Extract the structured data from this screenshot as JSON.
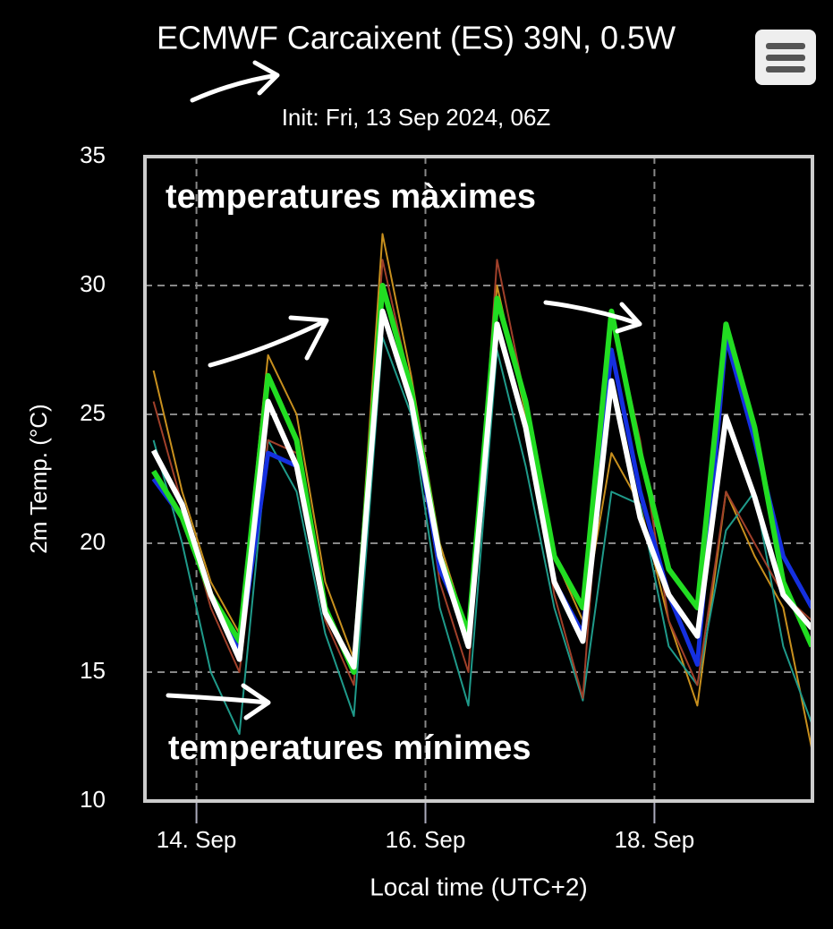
{
  "chart_data": {
    "type": "line",
    "title": "ECMWF Carcaixent (ES) 39N, 0.5W",
    "subtitle": "Init: Fri, 13 Sep 2024, 06Z",
    "y_label": "2m Temp. (°C)",
    "x_label": "Local time (UTC+2)",
    "annotations": [
      "temperatures màximes",
      "temperatures mínimes"
    ],
    "x": [
      13.625,
      13.875,
      14.125,
      14.375,
      14.625,
      14.875,
      15.125,
      15.375,
      15.625,
      15.875,
      16.125,
      16.375,
      16.625,
      16.875,
      17.125,
      17.375,
      17.625,
      17.875,
      18.125,
      18.375,
      18.625,
      18.875,
      19.125,
      19.375
    ],
    "xlim": [
      13.55,
      19.38
    ],
    "xticks": [
      {
        "value": 14,
        "label": "14. Sep"
      },
      {
        "value": 16,
        "label": "16. Sep"
      },
      {
        "value": 18,
        "label": "18. Sep"
      }
    ],
    "ylim": [
      10,
      35
    ],
    "yticks": [
      10,
      15,
      20,
      25,
      30,
      35
    ],
    "grid": true,
    "series": [
      {
        "color": "#c8901e",
        "width": 2,
        "values": [
          26.7,
          22.0,
          18.5,
          16.5,
          27.3,
          25.0,
          18.5,
          15.5,
          32.0,
          26.5,
          20.0,
          16.5,
          30.0,
          25.0,
          19.5,
          17.0,
          23.5,
          21.5,
          17.0,
          13.7,
          22.0,
          19.5,
          17.5,
          12.0
        ]
      },
      {
        "color": "#1f9a8a",
        "width": 2,
        "values": [
          24.0,
          20.0,
          15.0,
          12.6,
          24.0,
          22.0,
          16.5,
          13.3,
          28.0,
          25.0,
          17.5,
          13.7,
          27.5,
          23.0,
          17.5,
          13.9,
          22.0,
          21.5,
          16.0,
          14.5,
          20.5,
          22.0,
          16.0,
          13.0
        ]
      },
      {
        "color": "#a0402a",
        "width": 2,
        "values": [
          25.5,
          21.5,
          17.5,
          15.0,
          24.0,
          23.5,
          17.0,
          14.5,
          31.0,
          26.0,
          18.5,
          15.0,
          31.0,
          25.5,
          18.0,
          14.0,
          29.0,
          24.0,
          17.0,
          14.5,
          22.0,
          20.0,
          18.0,
          17.0
        ]
      },
      {
        "color": "#1530e0",
        "width": 5,
        "values": [
          22.5,
          21.0,
          18.0,
          15.8,
          23.5,
          23.0,
          17.5,
          15.0,
          29.0,
          25.5,
          19.0,
          16.5,
          28.5,
          24.5,
          18.5,
          16.5,
          27.5,
          22.0,
          18.0,
          15.3,
          28.0,
          24.0,
          19.5,
          17.5
        ]
      },
      {
        "color": "#22dd22",
        "width": 6,
        "values": [
          22.8,
          21.0,
          18.0,
          16.2,
          26.5,
          24.0,
          17.5,
          15.0,
          30.0,
          26.0,
          19.5,
          16.5,
          29.5,
          25.5,
          19.5,
          17.5,
          29.0,
          23.5,
          19.0,
          17.5,
          28.5,
          24.5,
          18.5,
          16.0
        ]
      },
      {
        "color": "#ffffff",
        "width": 6,
        "values": [
          23.6,
          21.5,
          18.0,
          15.5,
          25.5,
          23.0,
          17.3,
          15.2,
          29.0,
          25.5,
          19.5,
          16.0,
          28.5,
          24.5,
          18.5,
          16.2,
          26.3,
          21.0,
          18.0,
          16.4,
          24.9,
          21.8,
          18.0,
          16.7
        ]
      }
    ]
  }
}
